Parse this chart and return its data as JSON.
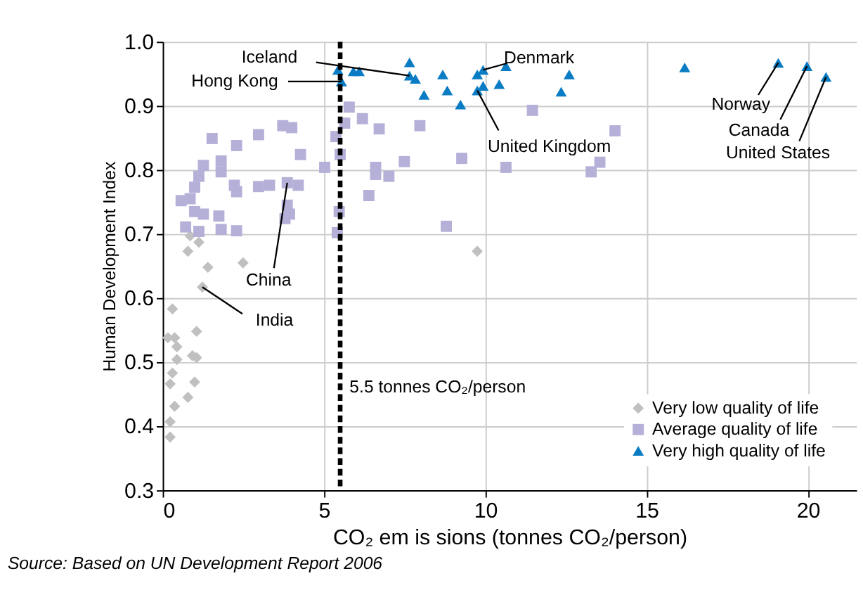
{
  "chart_data": {
    "type": "scatter",
    "xlabel": "CO₂ em is sions (tonnes CO₂/person)",
    "ylabel": "Human Development Index",
    "xlim": [
      0,
      21.5
    ],
    "xticks": [
      0,
      5,
      10,
      15,
      20
    ],
    "ylim": [
      0.3,
      1.0
    ],
    "yticks": [
      0.3,
      0.4,
      0.5,
      0.6,
      0.7,
      0.8,
      0.9,
      {
        "value": 1.0,
        "label": "1.0"
      }
    ],
    "grid": true,
    "legend": "bottom right",
    "series": [
      {
        "name": "Very low quality of life",
        "color": "#c0c0c0",
        "marker": "diamond",
        "x": [
          0.85,
          1.12,
          0.78,
          1.4,
          2.49,
          1.23,
          0.3,
          0.16,
          0.44,
          1.05,
          0.92,
          0.44,
          0.3,
          0.99,
          0.23,
          0.78,
          0.37,
          0.23,
          0.23,
          9.75,
          0.37,
          1.05
        ],
        "values": [
          0.697,
          0.687,
          0.673,
          0.648,
          0.655,
          0.617,
          0.583,
          0.538,
          0.524,
          0.548,
          0.51,
          0.504,
          0.483,
          0.469,
          0.466,
          0.445,
          0.431,
          0.407,
          0.383,
          0.673,
          0.538,
          0.507
        ]
      },
      {
        "name": "Average quality of life",
        "color": "#b4b0d8",
        "marker": "square",
        "x": [
          1.53,
          2.29,
          2.97,
          3.72,
          4.0,
          4.27,
          1.81,
          1.26,
          5.02,
          1.12,
          1.81,
          0.99,
          2.22,
          2.97,
          3.31,
          3.86,
          4.2,
          2.29,
          0.57,
          0.85,
          0.99,
          1.26,
          1.74,
          3.86,
          3.93,
          3.79,
          0.71,
          1.12,
          1.81,
          2.29,
          5.78,
          5.64,
          6.19,
          6.71,
          7.97,
          5.37,
          5.5,
          6.6,
          6.6,
          7.01,
          7.49,
          9.27,
          10.64,
          11.46,
          6.39,
          5.47,
          5.41,
          8.79,
          14.02,
          13.55,
          13.28
        ],
        "values": [
          0.849,
          0.838,
          0.855,
          0.869,
          0.866,
          0.824,
          0.814,
          0.807,
          0.804,
          0.79,
          0.797,
          0.773,
          0.776,
          0.774,
          0.776,
          0.78,
          0.776,
          0.766,
          0.752,
          0.755,
          0.735,
          0.731,
          0.728,
          0.745,
          0.731,
          0.724,
          0.711,
          0.704,
          0.707,
          0.705,
          0.898,
          0.873,
          0.88,
          0.864,
          0.869,
          0.852,
          0.824,
          0.804,
          0.793,
          0.79,
          0.813,
          0.818,
          0.804,
          0.893,
          0.76,
          0.735,
          0.702,
          0.712,
          0.861,
          0.812,
          0.797
        ]
      },
      {
        "name": "Very high quality of life",
        "color": "#0a7cc4",
        "marker": "triangle",
        "x": [
          5.43,
          5.54,
          5.91,
          6.09,
          7.65,
          7.65,
          7.83,
          8.1,
          8.68,
          8.82,
          9.23,
          9.75,
          9.93,
          9.75,
          9.93,
          10.64,
          10.43,
          12.6,
          12.35,
          16.18,
          19.08,
          19.97,
          20.56
        ],
        "values": [
          0.956,
          0.938,
          0.954,
          0.954,
          0.968,
          0.947,
          0.942,
          0.917,
          0.949,
          0.924,
          0.902,
          0.949,
          0.956,
          0.924,
          0.931,
          0.962,
          0.934,
          0.949,
          0.922,
          0.96,
          0.967,
          0.962,
          0.945
        ]
      }
    ],
    "ref_lines": [
      {
        "axis": "x",
        "value": 5.5,
        "label": "5.5 tonnes CO₂/person",
        "color": "#000000",
        "line_style": "dashed"
      }
    ],
    "annotations": [
      {
        "text": "Iceland",
        "x": 7.65,
        "y": 0.947
      },
      {
        "text": "Hong Kong",
        "x": 5.54,
        "y": 0.938
      },
      {
        "text": "Denmark",
        "x": 9.93,
        "y": 0.956
      },
      {
        "text": "United Kingdom",
        "x": 9.75,
        "y": 0.924
      },
      {
        "text": "Norway",
        "x": 19.08,
        "y": 0.967
      },
      {
        "text": "Canada",
        "x": 19.97,
        "y": 0.962
      },
      {
        "text": "United States",
        "x": 20.56,
        "y": 0.945
      },
      {
        "text": "China",
        "x": 3.86,
        "y": 0.78
      },
      {
        "text": "India",
        "x": 1.23,
        "y": 0.617
      },
      "Source: Based on UN Development Report 2006"
    ]
  }
}
